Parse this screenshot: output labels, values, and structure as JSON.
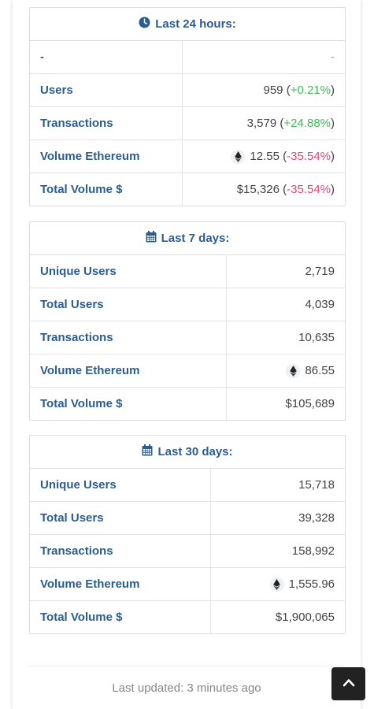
{
  "panel24": {
    "title": "Last 24 hours:",
    "rows": [
      {
        "label": "-",
        "value": "-"
      },
      {
        "label": "Users",
        "value": "959",
        "change": "+0.21%"
      },
      {
        "label": "Transactions",
        "value": "3,579",
        "change": "+24.88%"
      },
      {
        "label": "Volume Ethereum",
        "value": "12.55",
        "change": "-35.54%"
      },
      {
        "label": "Total Volume $",
        "value": "$15,326",
        "change": "-35.54%"
      }
    ]
  },
  "panel7": {
    "title": "Last 7 days:",
    "rows": [
      {
        "label": "Unique Users",
        "value": "2,719"
      },
      {
        "label": "Total Users",
        "value": "4,039"
      },
      {
        "label": "Transactions",
        "value": "10,635"
      },
      {
        "label": "Volume Ethereum",
        "value": "86.55"
      },
      {
        "label": "Total Volume $",
        "value": "$105,689"
      }
    ]
  },
  "panel30": {
    "title": "Last 30 days:",
    "rows": [
      {
        "label": "Unique Users",
        "value": "15,718"
      },
      {
        "label": "Total Users",
        "value": "39,328"
      },
      {
        "label": "Transactions",
        "value": "158,992"
      },
      {
        "label": "Volume Ethereum",
        "value": "1,555.96"
      },
      {
        "label": "Total Volume $",
        "value": "$1,900,065"
      }
    ]
  },
  "footer": {
    "last_updated": "Last updated: 3 minutes ago"
  },
  "icons": {
    "clock": "clock-icon",
    "calendar": "calendar-icon",
    "ethereum": "ethereum-icon",
    "scroll_top": "chevron-up-icon"
  },
  "colors": {
    "label": "#2c5d8f",
    "positive": "#3cba54",
    "negative": "#e0457b"
  }
}
